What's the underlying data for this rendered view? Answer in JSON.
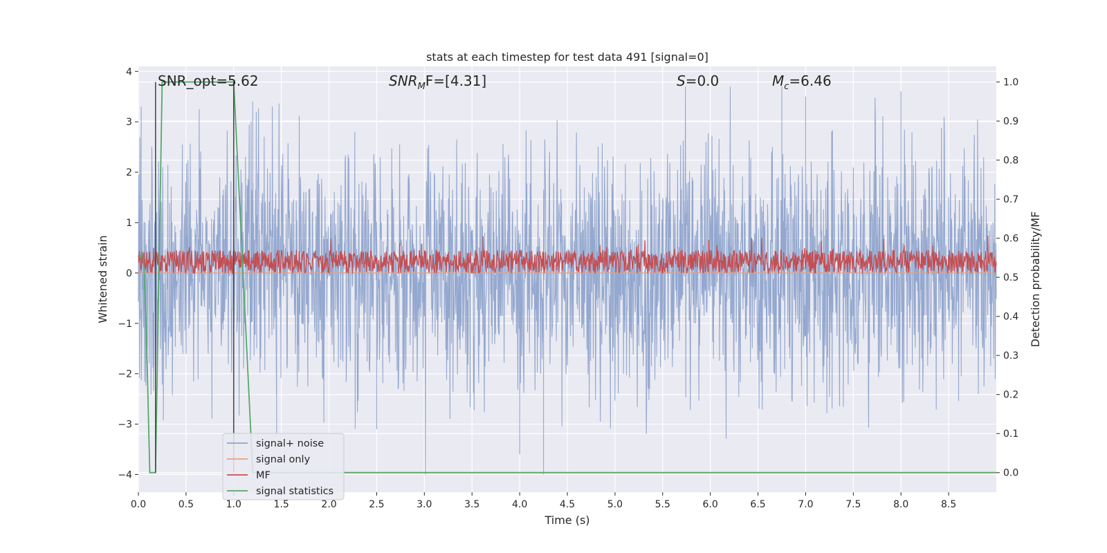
{
  "chart_data": {
    "type": "line",
    "title": "stats at each timestep for test data 491 [signal=0]",
    "xlabel": "Time (s)",
    "ylabel": "Whitened strain",
    "ylabel_right": "Detection probability/MF",
    "xlim": [
      0.0,
      9.0
    ],
    "ylim": [
      -4.35,
      4.1
    ],
    "ylim_right": [
      -0.05,
      1.04
    ],
    "xticks": [
      0.0,
      0.5,
      1.0,
      1.5,
      2.0,
      2.5,
      3.0,
      3.5,
      4.0,
      4.5,
      5.0,
      5.5,
      6.0,
      6.5,
      7.0,
      7.5,
      8.0,
      8.5
    ],
    "xtick_labels": [
      "0.0",
      "0.5",
      "1.0",
      "1.5",
      "2.0",
      "2.5",
      "3.0",
      "3.5",
      "4.0",
      "4.5",
      "5.0",
      "5.5",
      "6.0",
      "6.5",
      "7.0",
      "7.5",
      "8.0",
      "8.5"
    ],
    "yticks": [
      4,
      3,
      2,
      1,
      0,
      -1,
      -2,
      -3,
      -4
    ],
    "ytick_labels": [
      "4",
      "3",
      "2",
      "1",
      "0",
      "−1",
      "−2",
      "−3",
      "−4"
    ],
    "yticks_right": [
      1.0,
      0.9,
      0.8,
      0.7,
      0.6,
      0.5,
      0.4,
      0.3,
      0.2,
      0.1,
      0.0
    ],
    "ytick_labels_right": [
      "1.0",
      "0.9",
      "0.8",
      "0.7",
      "0.6",
      "0.5",
      "0.4",
      "0.3",
      "0.2",
      "0.1",
      "0.0"
    ],
    "grid": true,
    "annotations": {
      "snr_opt": "SNR_opt=5.62",
      "snr_mf_main": "SNR",
      "snr_mf_sub": "M",
      "snr_mf_rest": "F=[4.31]",
      "s_main": "S",
      "s_rest": "=0.0",
      "mc_main": "M",
      "mc_sub": "c",
      "mc_rest": "=6.46"
    },
    "vertical_markers_x": [
      0.18,
      1.0
    ],
    "series": [
      {
        "name": "signal+ noise",
        "axis": "left",
        "color": "#8fa4cc",
        "description_range": [
          -4.0,
          3.7
        ],
        "typical_amplitude": 2.0,
        "x_range": [
          0.0,
          9.0
        ]
      },
      {
        "name": "signal only",
        "axis": "left",
        "color": "#e8a07e",
        "x": [
          0.0,
          9.0
        ],
        "y": [
          0.0,
          0.0
        ]
      },
      {
        "name": "MF",
        "axis": "right",
        "color": "#c44e52",
        "mean": 0.54,
        "range": [
          0.51,
          0.61
        ],
        "x_range": [
          0.0,
          9.0
        ]
      },
      {
        "name": "signal statistics",
        "axis": "right",
        "color": "#55a868",
        "x": [
          0.0,
          0.05,
          0.08,
          0.12,
          0.18,
          0.25,
          1.0,
          1.1,
          1.2,
          9.0
        ],
        "y": [
          0.55,
          0.56,
          0.4,
          0.0,
          0.0,
          1.0,
          1.0,
          0.5,
          0.0,
          0.0
        ]
      }
    ],
    "legend": {
      "position": "lower-left",
      "entries": [
        {
          "label": "signal+ noise",
          "color": "#8fa4cc"
        },
        {
          "label": "signal only",
          "color": "#e8a07e"
        },
        {
          "label": "MF",
          "color": "#c44e52"
        },
        {
          "label": "signal statistics",
          "color": "#55a868"
        }
      ]
    }
  }
}
